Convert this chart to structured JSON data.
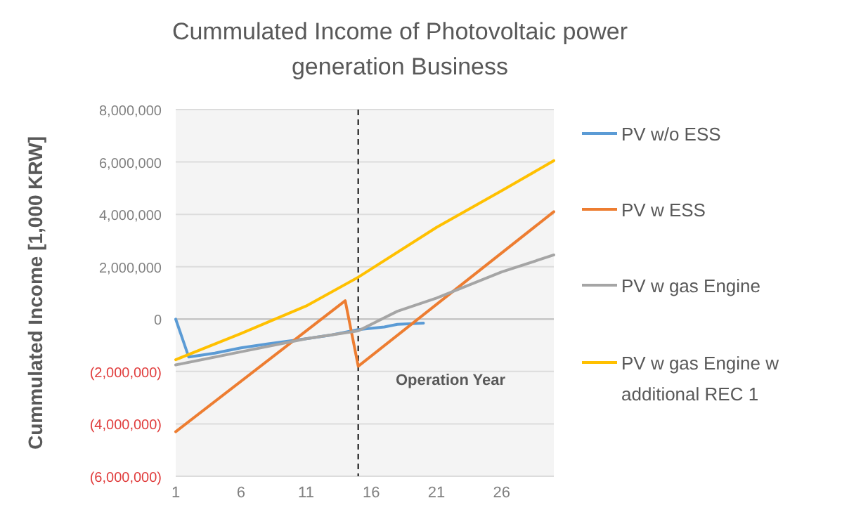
{
  "chart_data": {
    "type": "line",
    "title": "Cummulated Income of  Photovoltaic power generation Business",
    "xlabel": "Operation Year",
    "ylabel": "Cummulated  Income [1,000 KRW]",
    "xlim": [
      1,
      30
    ],
    "xticks": [
      1,
      6,
      11,
      16,
      21,
      26
    ],
    "ylim": [
      -6000000,
      8000000
    ],
    "yticks": [
      {
        "value": -6000000,
        "label": "(6,000,000)"
      },
      {
        "value": -4000000,
        "label": "(4,000,000)"
      },
      {
        "value": -2000000,
        "label": "(2,000,000)"
      },
      0,
      {
        "value": 2000000,
        "label": "2,000,000"
      },
      {
        "value": 4000000,
        "label": "4,000,000"
      },
      {
        "value": 6000000,
        "label": "6,000,000"
      },
      {
        "value": 8000000,
        "label": "8,000,000"
      }
    ],
    "grid": "y",
    "legend": "right",
    "marker": "none",
    "line_style": "solid",
    "ref_lines": [
      {
        "axis": "x",
        "value": 15,
        "label": null,
        "color": "#333333",
        "line_style": "dashed"
      }
    ],
    "series": [
      {
        "name": "PV w/o ESS",
        "color": "#5b9bd5",
        "x": [
          1,
          2,
          4,
          6,
          8,
          11,
          13,
          15,
          17,
          18,
          20
        ],
        "values": [
          0,
          -1450000,
          -1300000,
          -1100000,
          -950000,
          -750000,
          -600000,
          -400000,
          -300000,
          -200000,
          -150000
        ]
      },
      {
        "name": "PV w ESS",
        "color": "#ed7d31",
        "x": [
          1,
          14,
          15,
          30
        ],
        "values": [
          -4300000,
          700000,
          -1800000,
          4100000
        ]
      },
      {
        "name": "PV w gas Engine",
        "color": "#a5a5a5",
        "x": [
          1,
          6,
          11,
          15,
          18,
          21,
          26,
          30
        ],
        "values": [
          -1750000,
          -1250000,
          -750000,
          -450000,
          300000,
          800000,
          1800000,
          2450000
        ]
      },
      {
        "name": "PV w gas Engine w additional REC 1",
        "color": "#ffc000",
        "x": [
          1,
          6,
          11,
          15,
          21,
          26,
          30
        ],
        "values": [
          -1550000,
          -550000,
          500000,
          1600000,
          3500000,
          4900000,
          6050000
        ]
      }
    ]
  }
}
